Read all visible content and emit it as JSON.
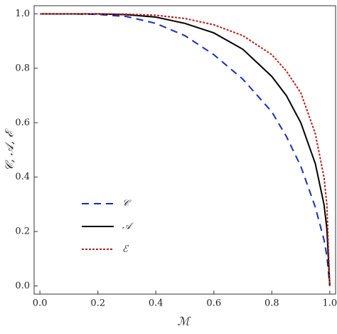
{
  "chart_data": {
    "type": "line",
    "x_label": "ℳ",
    "y_label": "𝒞, 𝒜, ℰ",
    "x": [
      0,
      0.1,
      0.2,
      0.3,
      0.4,
      0.5,
      0.6,
      0.7,
      0.8,
      0.85,
      0.9,
      0.95,
      0.98,
      0.99,
      1.0
    ],
    "series": [
      {
        "name": "𝒞",
        "color": "#1a2db0",
        "dash": "10,7",
        "values": [
          1,
          1,
          0.998,
          0.99,
          0.965,
          0.92,
          0.85,
          0.76,
          0.64,
          0.55,
          0.44,
          0.29,
          0.17,
          0.11,
          0
        ]
      },
      {
        "name": "𝒜",
        "color": "#000000",
        "dash": "none",
        "values": [
          1,
          1,
          1,
          0.997,
          0.988,
          0.965,
          0.93,
          0.87,
          0.77,
          0.7,
          0.6,
          0.45,
          0.3,
          0.21,
          0
        ]
      },
      {
        "name": "ℰ",
        "color": "#b52020",
        "dash": "3,2",
        "values": [
          1,
          1,
          1,
          0.999,
          0.995,
          0.983,
          0.96,
          0.92,
          0.85,
          0.79,
          0.71,
          0.56,
          0.4,
          0.3,
          0
        ]
      }
    ],
    "xlim": [
      -0.02,
      1.02
    ],
    "ylim": [
      -0.03,
      1.03
    ],
    "xticks": [
      {
        "value": 0,
        "label": "0.0"
      },
      0.2,
      0.4,
      0.6,
      0.8,
      {
        "value": 1,
        "label": "1.0"
      }
    ],
    "yticks": [
      {
        "value": 0,
        "label": "0.0"
      },
      0.2,
      0.4,
      0.6,
      0.8,
      {
        "value": 1,
        "label": "1.0"
      }
    ]
  }
}
